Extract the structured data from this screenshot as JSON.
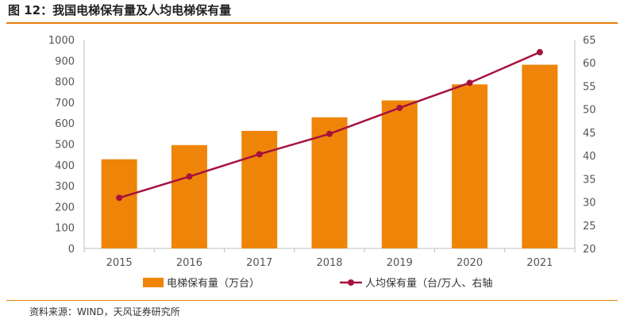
{
  "header": {
    "title": "图 12：我国电梯保有量及人均电梯保有量"
  },
  "footer": {
    "source": "资料来源：WIND，天风证券研究所"
  },
  "colors": {
    "accent": "#E87E0C",
    "bar": "#EE8508",
    "line": "#A6123D"
  },
  "chart_data": {
    "type": "bar",
    "categories": [
      "2015",
      "2016",
      "2017",
      "2018",
      "2019",
      "2020",
      "2021"
    ],
    "series": [
      {
        "name": "电梯保有量（万台）",
        "type": "bar",
        "axis": "left",
        "values": [
          427,
          495,
          563,
          628,
          709,
          786,
          880
        ]
      },
      {
        "name": "人均保有量（台/万人、右轴",
        "type": "line",
        "axis": "right",
        "values": [
          30.9,
          35.5,
          40.3,
          44.7,
          50.3,
          55.7,
          62.3
        ]
      }
    ],
    "ylim": [
      0,
      1000
    ],
    "yticks": [
      "0",
      "100",
      "200",
      "300",
      "400",
      "500",
      "600",
      "700",
      "800",
      "900",
      "1000"
    ],
    "y2lim": [
      20,
      65
    ],
    "y2ticks": [
      "20",
      "25",
      "30",
      "35",
      "40",
      "45",
      "50",
      "55",
      "60",
      "65"
    ],
    "grid": false,
    "legend": "bottom"
  }
}
